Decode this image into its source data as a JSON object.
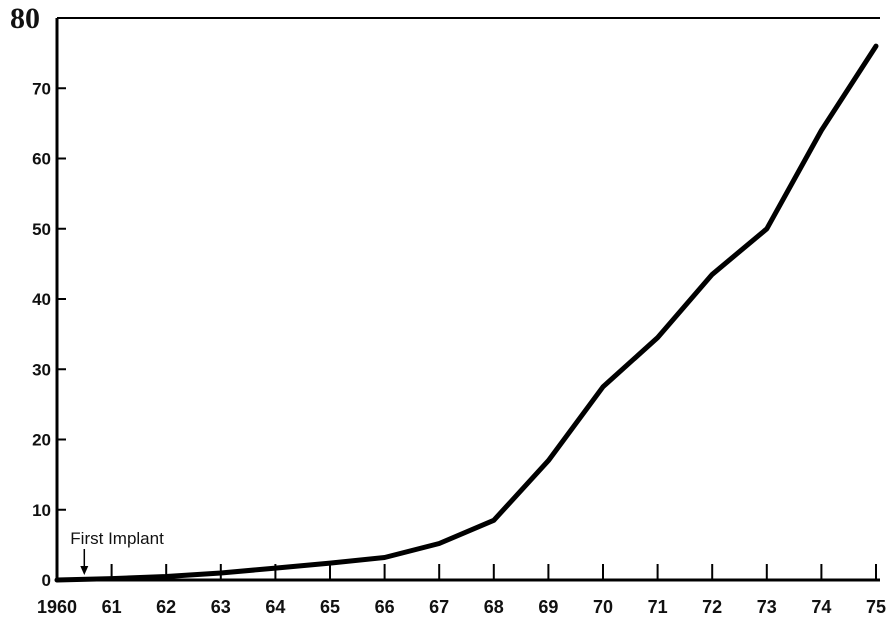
{
  "chart_data": {
    "type": "line",
    "title": "",
    "xlabel": "",
    "ylabel": "",
    "x": [
      1960,
      1961,
      1962,
      1963,
      1964,
      1965,
      1966,
      1967,
      1968,
      1969,
      1970,
      1971,
      1972,
      1973,
      1974,
      1975
    ],
    "x_tick_labels": [
      "1960",
      "61",
      "62",
      "63",
      "64",
      "65",
      "66",
      "67",
      "68",
      "69",
      "70",
      "71",
      "72",
      "73",
      "74",
      "75"
    ],
    "series": [
      {
        "points": [
          [
            1960,
            0.0
          ],
          [
            1961,
            0.2
          ],
          [
            1962,
            0.5
          ],
          [
            1963,
            1.0
          ],
          [
            1964,
            1.7
          ],
          [
            1965,
            2.4
          ],
          [
            1966,
            3.2
          ],
          [
            1967,
            5.2
          ],
          [
            1968,
            8.5
          ],
          [
            1969,
            17.0
          ],
          [
            1970,
            27.5
          ],
          [
            1971,
            34.5
          ],
          [
            1972,
            43.5
          ],
          [
            1973,
            50.0
          ],
          [
            1974,
            64.0
          ],
          [
            1975,
            76.0
          ]
        ]
      }
    ],
    "y_ticks": [
      0,
      10,
      20,
      30,
      40,
      50,
      60,
      70
    ],
    "y_top_label": "80",
    "xlim": [
      1960,
      1975
    ],
    "ylim": [
      0,
      80
    ],
    "grid": false,
    "annotations": [
      {
        "text": "First Implant",
        "x": 1960.5,
        "y": 0
      }
    ]
  }
}
